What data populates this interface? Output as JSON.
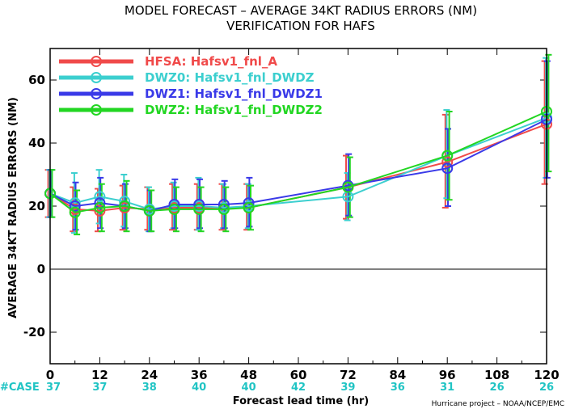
{
  "chart_data": {
    "type": "line",
    "title": "MODEL FORECAST – AVERAGE 34KT RADIUS ERRORS (NM)",
    "subtitle": "VERIFICATION FOR HAFS",
    "xlabel": "Forecast lead time (hr)",
    "ylabel": "AVERAGE 34KT RADIUS ERRORS (NM)",
    "credit": "Hurricane project – NOAA/NCEP/EMC",
    "xlim": [
      0,
      120
    ],
    "ylim": [
      -30,
      70
    ],
    "x_ticks": [
      0,
      12,
      24,
      36,
      48,
      60,
      72,
      84,
      96,
      108,
      120
    ],
    "y_ticks": [
      -20,
      0,
      20,
      40,
      60
    ],
    "grid": false,
    "zero_line": true,
    "legend_position": "top-left",
    "cases_label": "#CASE",
    "cases": [
      "37",
      "37",
      "38",
      "40",
      "40",
      "42",
      "39",
      "36",
      "31",
      "26",
      "26"
    ],
    "x": [
      0,
      6,
      12,
      18,
      24,
      30,
      36,
      42,
      48,
      72,
      96,
      120
    ],
    "series": [
      {
        "name": "HFSA: Hafsv1_fnl_A",
        "color": "#f04a4a",
        "values": [
          24,
          19,
          18.5,
          19.5,
          19,
          19.5,
          19.5,
          19.5,
          19.5,
          26,
          34,
          46
        ],
        "err_low": [
          16.5,
          12,
          12,
          12.5,
          12.5,
          12.5,
          12.5,
          12.5,
          12.5,
          16,
          19.5,
          27
        ],
        "err_high": [
          31.5,
          26,
          25.5,
          26.5,
          26,
          27,
          27,
          27,
          27,
          36,
          49,
          66
        ]
      },
      {
        "name": "DWZ0: Hafsv1_fnl_DWDZ",
        "color": "#3ccfcf",
        "values": [
          24,
          21,
          23,
          21.5,
          19,
          20,
          20,
          19.5,
          20,
          23,
          36,
          48
        ],
        "err_low": [
          16.5,
          11.5,
          14.5,
          13.5,
          12,
          13,
          12.5,
          13,
          13,
          15.5,
          22.5,
          29
        ],
        "err_high": [
          31.5,
          30.5,
          31.5,
          30,
          26,
          27.5,
          29,
          27,
          27,
          30.5,
          50.5,
          67
        ]
      },
      {
        "name": "DWZ1: Hafsv1_fnl_DWDZ1",
        "color": "#3a3ae8",
        "values": [
          24,
          20,
          21,
          20,
          18.5,
          20.5,
          20.5,
          20.5,
          21,
          26.5,
          32,
          47.5
        ],
        "err_low": [
          16.5,
          12.5,
          13,
          13,
          12,
          13,
          13,
          13,
          13.5,
          17,
          20,
          29
        ],
        "err_high": [
          31.5,
          27.5,
          29,
          27,
          25,
          28.5,
          28.5,
          28,
          29,
          36.5,
          44.5,
          66
        ]
      },
      {
        "name": "DWZ2: Hafsv1_fnl_DWDZ2",
        "color": "#22d622",
        "values": [
          24,
          18,
          19.5,
          20,
          18.5,
          19,
          19,
          19,
          19.5,
          26,
          36,
          50
        ],
        "err_low": [
          16.5,
          11,
          12,
          12,
          12,
          12,
          12,
          12,
          12.5,
          16.5,
          22,
          31
        ],
        "err_high": [
          31.5,
          25,
          27,
          28,
          25,
          26,
          26,
          26,
          26.5,
          35.5,
          50,
          68
        ]
      }
    ]
  }
}
